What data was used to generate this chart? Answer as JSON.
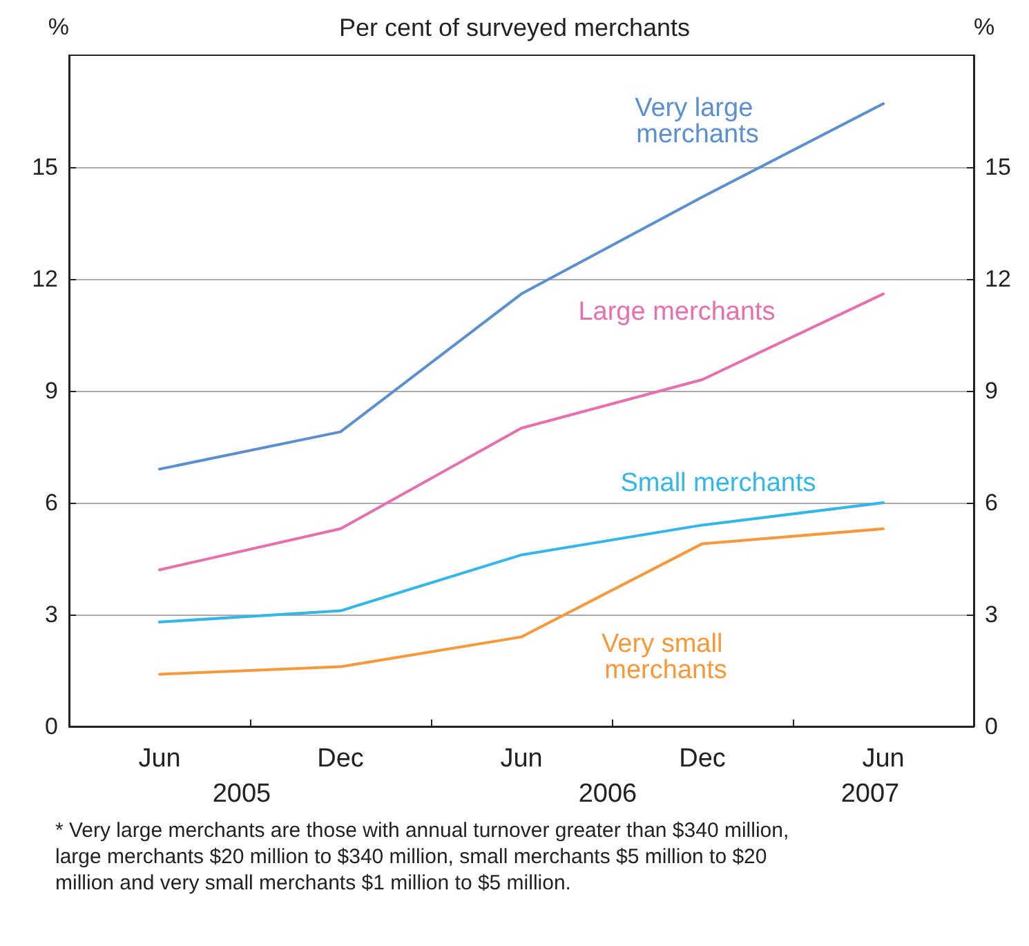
{
  "chart_data": {
    "type": "line",
    "title": "Per cent of surveyed merchants",
    "ylabel": "%",
    "y2label": "%",
    "categories": [
      "Jun",
      "Dec",
      "Jun",
      "Dec",
      "Jun"
    ],
    "series": [
      {
        "name": "Very large merchants",
        "color": "#5b8fd0",
        "values": [
          6.9,
          7.9,
          11.6,
          14.2,
          16.7
        ]
      },
      {
        "name": "Large merchants",
        "color": "#e86fae",
        "values": [
          4.2,
          5.3,
          8.0,
          9.3,
          11.6
        ]
      },
      {
        "name": "Small merchants",
        "color": "#33b6e8",
        "values": [
          2.8,
          3.1,
          4.6,
          5.4,
          6.0
        ]
      },
      {
        "name": "Very small merchants",
        "color": "#f7983a",
        "values": [
          1.4,
          1.6,
          2.4,
          4.9,
          5.3
        ]
      }
    ],
    "ylim": [
      0,
      18
    ],
    "yticks": [
      0,
      3,
      6,
      9,
      12,
      15
    ],
    "y2lim": [
      0,
      18
    ],
    "y2ticks": [
      0,
      3,
      6,
      9,
      12,
      15
    ],
    "grid": "y",
    "legend": false,
    "marker": "none",
    "line_style": "solid",
    "annotations": [
      "2005",
      "2006",
      "2007",
      "* Very large merchants are those with annual turnover greater than $340 million, large merchants $20 million to $340 million, small merchants $5 million to $20 million and very small merchants $1 million to $5 million."
    ]
  }
}
